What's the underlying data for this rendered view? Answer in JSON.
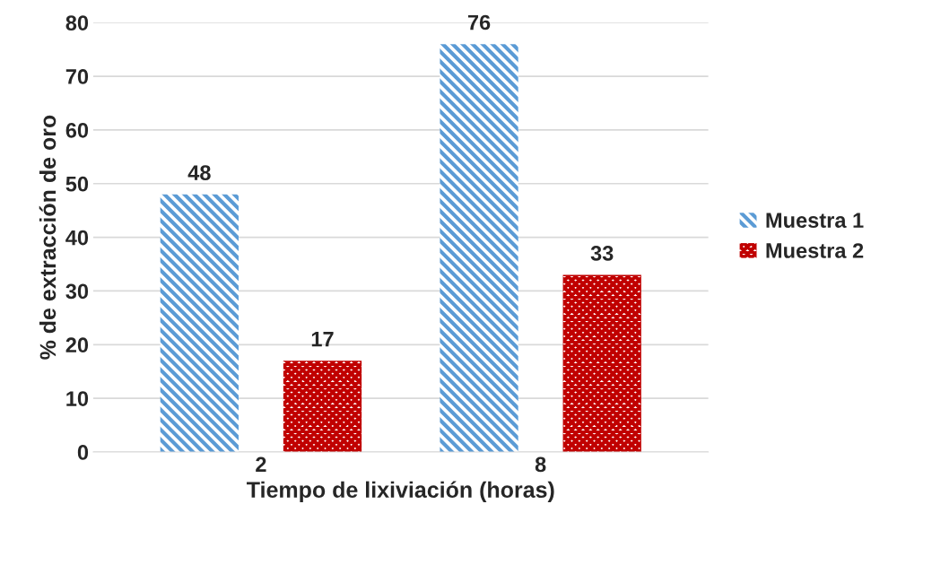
{
  "chart_data": {
    "type": "bar",
    "xlabel": "Tiempo de lixiviación (horas)",
    "ylabel": "% de extracción de oro",
    "categories": [
      "2",
      "8"
    ],
    "series": [
      {
        "name": "Muestra 1",
        "color": "#5b9bd5",
        "values": [
          48,
          76
        ]
      },
      {
        "name": "Muestra 2",
        "color": "#c00000",
        "values": [
          17,
          33
        ]
      }
    ],
    "ylim": [
      0,
      80
    ],
    "yticks": [
      0,
      10,
      20,
      30,
      40,
      50,
      60,
      70,
      80
    ],
    "grid": "y",
    "legend": "right",
    "data_labels": true
  }
}
